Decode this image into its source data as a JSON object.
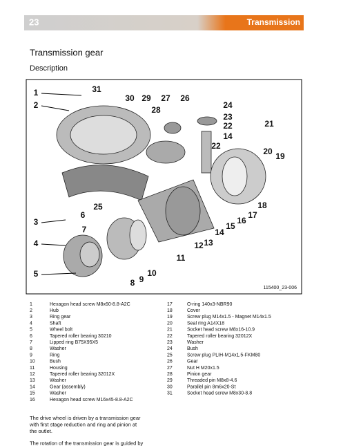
{
  "header": {
    "page": "23",
    "section": "Transmission"
  },
  "title": "Transmission gear",
  "subtitle": "Description",
  "figure": {
    "id": "115400_23-006",
    "callouts": [
      "1",
      "2",
      "31",
      "30",
      "29",
      "27",
      "26",
      "28",
      "24",
      "23",
      "22",
      "14",
      "22",
      "21",
      "20",
      "19",
      "18",
      "17",
      "16",
      "15",
      "14",
      "13",
      "12",
      "11",
      "25",
      "6",
      "7",
      "3",
      "4",
      "5",
      "8",
      "9",
      "10"
    ]
  },
  "parts_left": [
    [
      "1",
      "Hexagon head screw M8x60-8.8-A2C"
    ],
    [
      "2",
      "Hub"
    ],
    [
      "3",
      "Ring gear"
    ],
    [
      "4",
      "Shaft"
    ],
    [
      "5",
      "Wheel bolt"
    ],
    [
      "6",
      "Tapered roller bearing 30210"
    ],
    [
      "7",
      "Lipped ring B75X95X5"
    ],
    [
      "8",
      "Washer"
    ],
    [
      "9",
      "Ring"
    ],
    [
      "10",
      "Bush"
    ],
    [
      "11",
      "Housing"
    ],
    [
      "12",
      "Tapered roller bearing 32012X"
    ],
    [
      "13",
      "Washer"
    ],
    [
      "14",
      "Gear (assembly)"
    ],
    [
      "15",
      "Washer"
    ],
    [
      "16",
      "Hexagon head screw M16x45-8.8-A2C"
    ]
  ],
  "parts_right": [
    [
      "17",
      "O-ring 140x3-NBR90"
    ],
    [
      "18",
      "Cover"
    ],
    [
      "19",
      "Screw plug M14x1.5 - Magnet M14x1.5"
    ],
    [
      "20",
      "Seal ring A14X18"
    ],
    [
      "21",
      "Socket head screw M8x16-10.9"
    ],
    [
      "22",
      "Tapered roller bearing 32012X"
    ],
    [
      "23",
      "Washer"
    ],
    [
      "24",
      "Bush"
    ],
    [
      "25",
      "Screw plug PLIH-M14x1.5-FKM80"
    ],
    [
      "26",
      "Gear"
    ],
    [
      "27",
      "Nut H M20x1.5"
    ],
    [
      "28",
      "Pinion gear"
    ],
    [
      "29",
      "Threaded pin M8x8-4.6"
    ],
    [
      "30",
      "Parallel pin 8m6x20-St"
    ],
    [
      "31",
      "Socket head screw M8x30-8.8"
    ]
  ],
  "paragraphs": [
    [
      "The drive wheel is driven by a transmission gear",
      "with first stage reduction and ring and pinion at",
      "the outlet."
    ],
    [
      "The rotation of the transmission gear is guided by"
    ]
  ]
}
